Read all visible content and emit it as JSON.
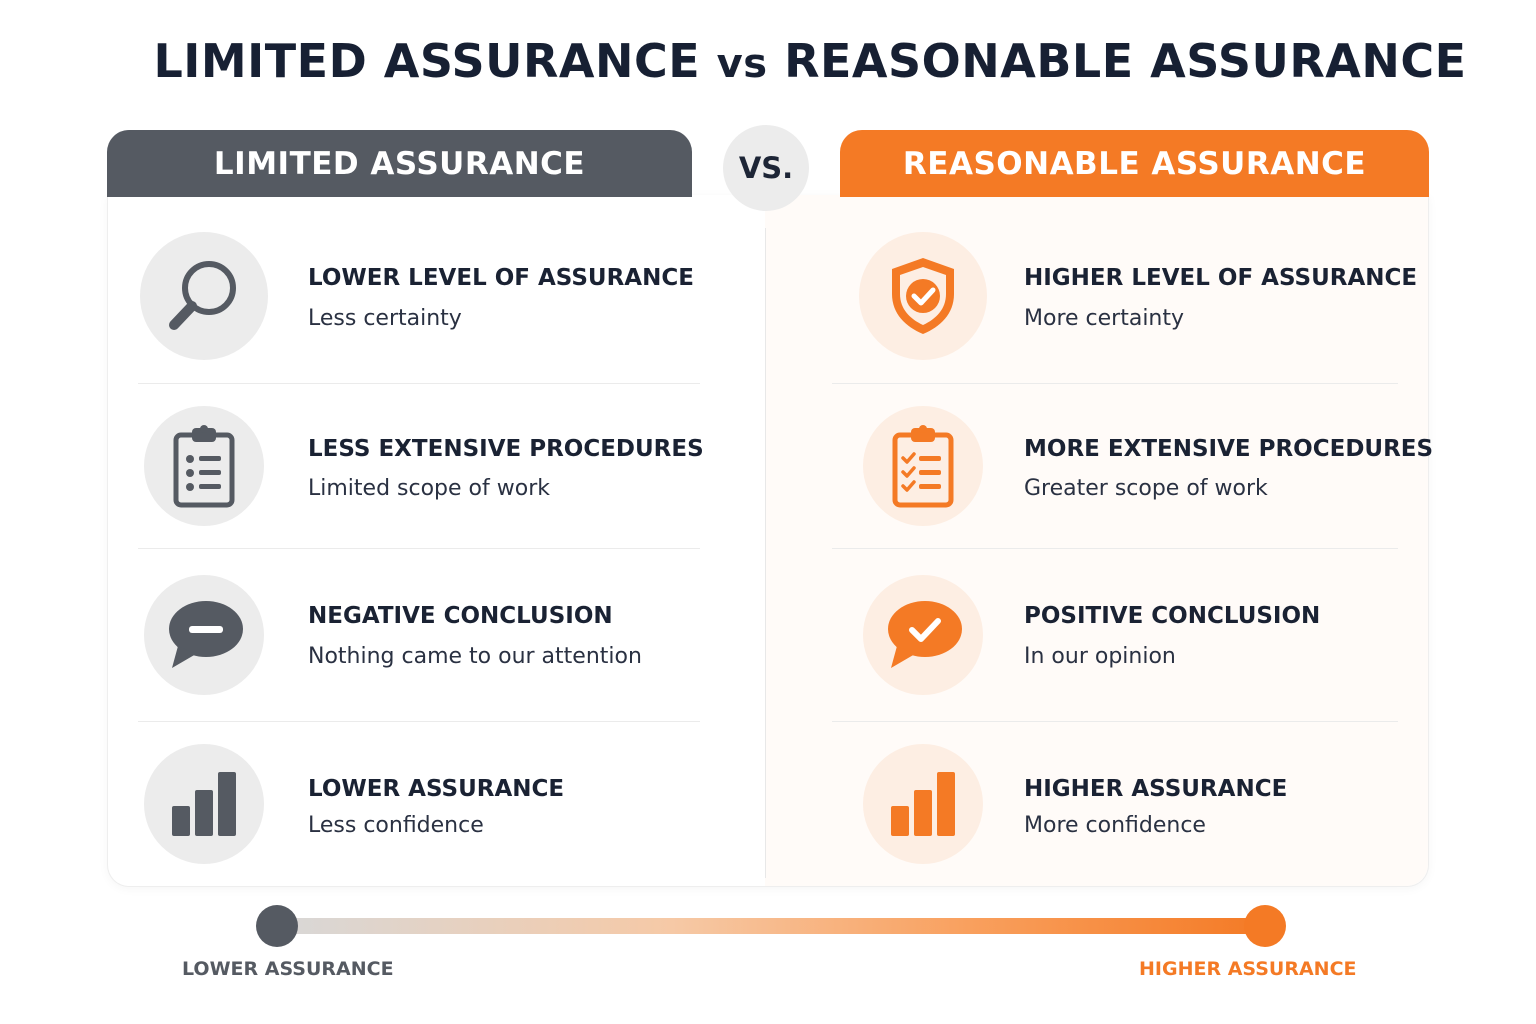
{
  "title": {
    "part1": "LIMITED ASSURANCE",
    "vs": "vs",
    "part2": "REASONABLE ASSURANCE"
  },
  "vs_badge": "VS.",
  "colors": {
    "gray_accent": "#555a62",
    "orange_accent": "#f47a25",
    "text_dark": "#172033"
  },
  "left": {
    "header": "LIMITED ASSURANCE",
    "items": [
      {
        "icon": "magnifier-icon",
        "title": "LOWER LEVEL OF ASSURANCE",
        "subtitle": "Less certainty"
      },
      {
        "icon": "clipboard-list-icon",
        "title": "LESS EXTENSIVE PROCEDURES",
        "subtitle": "Limited scope of work"
      },
      {
        "icon": "speech-bubble-minus-icon",
        "title": "NEGATIVE CONCLUSION",
        "subtitle": "Nothing came to our attention"
      },
      {
        "icon": "bar-chart-icon",
        "title": "LOWER ASSURANCE",
        "subtitle": "Less confidence"
      }
    ]
  },
  "right": {
    "header": "REASONABLE ASSURANCE",
    "items": [
      {
        "icon": "shield-check-icon",
        "title": "HIGHER LEVEL OF ASSURANCE",
        "subtitle": "More certainty"
      },
      {
        "icon": "clipboard-check-icon",
        "title": "MORE EXTENSIVE PROCEDURES",
        "subtitle": "Greater scope of work"
      },
      {
        "icon": "speech-bubble-check-icon",
        "title": "POSITIVE CONCLUSION",
        "subtitle": "In our opinion"
      },
      {
        "icon": "bar-chart-icon",
        "title": "HIGHER ASSURANCE",
        "subtitle": "More confidence"
      }
    ]
  },
  "scale": {
    "low_label": "LOWER ASSURANCE",
    "high_label": "HIGHER ASSURANCE"
  }
}
